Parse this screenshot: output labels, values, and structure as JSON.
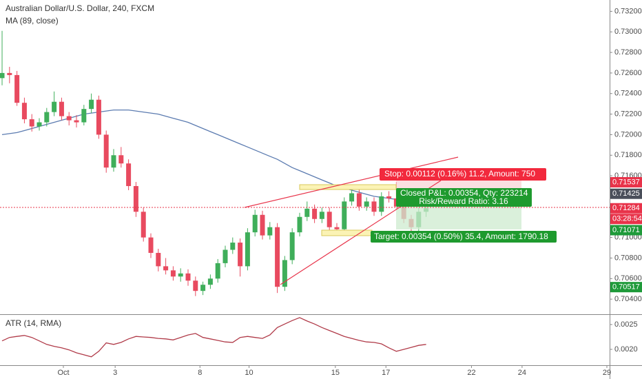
{
  "chart_data": [
    {
      "type": "candlestick",
      "title": "Australian Dollar/U.S. Dollar, 240, FXCM",
      "x": [
        0,
        1,
        2,
        3,
        4,
        5,
        6,
        7,
        8,
        9,
        10,
        11,
        12,
        13,
        14,
        15,
        16,
        17,
        18,
        19,
        20,
        21,
        22,
        23,
        24,
        25,
        26,
        27,
        28,
        29,
        30,
        31,
        32,
        33,
        34,
        35,
        36,
        37,
        38,
        39,
        40,
        41,
        42,
        43,
        44,
        45,
        46,
        47,
        48,
        49,
        50,
        51,
        52,
        53,
        54,
        55,
        56,
        57
      ],
      "ohlc": [
        [
          0.7255,
          0.7301,
          0.7248,
          0.726
        ],
        [
          0.726,
          0.7266,
          0.725,
          0.7258
        ],
        [
          0.7258,
          0.7262,
          0.7228,
          0.7231
        ],
        [
          0.7231,
          0.7236,
          0.7211,
          0.7215
        ],
        [
          0.7215,
          0.722,
          0.7203,
          0.7208
        ],
        [
          0.7208,
          0.7216,
          0.7204,
          0.7212
        ],
        [
          0.7212,
          0.7226,
          0.7208,
          0.7222
        ],
        [
          0.7222,
          0.7242,
          0.7218,
          0.7232
        ],
        [
          0.7232,
          0.7236,
          0.7214,
          0.7218
        ],
        [
          0.7218,
          0.7222,
          0.7209,
          0.7214
        ],
        [
          0.7214,
          0.7219,
          0.7207,
          0.7212
        ],
        [
          0.7212,
          0.7229,
          0.7209,
          0.7225
        ],
        [
          0.7225,
          0.724,
          0.7221,
          0.7234
        ],
        [
          0.7234,
          0.7238,
          0.7196,
          0.72
        ],
        [
          0.72,
          0.7204,
          0.7163,
          0.7168
        ],
        [
          0.7168,
          0.7186,
          0.7164,
          0.718
        ],
        [
          0.718,
          0.7188,
          0.7168,
          0.7172
        ],
        [
          0.7172,
          0.7176,
          0.7146,
          0.715
        ],
        [
          0.715,
          0.7154,
          0.712,
          0.7125
        ],
        [
          0.7125,
          0.7129,
          0.7096,
          0.71
        ],
        [
          0.71,
          0.7104,
          0.708,
          0.7085
        ],
        [
          0.7085,
          0.7089,
          0.7067,
          0.7072
        ],
        [
          0.7072,
          0.708,
          0.7064,
          0.7068
        ],
        [
          0.7068,
          0.7072,
          0.7058,
          0.7062
        ],
        [
          0.7062,
          0.707,
          0.7057,
          0.7065
        ],
        [
          0.7065,
          0.7069,
          0.7053,
          0.7058
        ],
        [
          0.7058,
          0.7062,
          0.7043,
          0.7048
        ],
        [
          0.7048,
          0.7057,
          0.7044,
          0.7054
        ],
        [
          0.7054,
          0.7064,
          0.705,
          0.706
        ],
        [
          0.706,
          0.7079,
          0.7056,
          0.7075
        ],
        [
          0.7075,
          0.7092,
          0.7071,
          0.7088
        ],
        [
          0.7088,
          0.71,
          0.7084,
          0.7095
        ],
        [
          0.7095,
          0.7099,
          0.7062,
          0.7072
        ],
        [
          0.7072,
          0.7109,
          0.7068,
          0.7105
        ],
        [
          0.7105,
          0.7127,
          0.7101,
          0.7122
        ],
        [
          0.7122,
          0.7126,
          0.7098,
          0.7102
        ],
        [
          0.7102,
          0.7115,
          0.7098,
          0.711
        ],
        [
          0.711,
          0.7114,
          0.7046,
          0.7052
        ],
        [
          0.7052,
          0.7082,
          0.7048,
          0.7078
        ],
        [
          0.7078,
          0.7109,
          0.7074,
          0.7105
        ],
        [
          0.7105,
          0.7124,
          0.7101,
          0.712
        ],
        [
          0.712,
          0.7135,
          0.7116,
          0.7128
        ],
        [
          0.7128,
          0.7132,
          0.7114,
          0.7118
        ],
        [
          0.7118,
          0.7129,
          0.7114,
          0.7125
        ],
        [
          0.7125,
          0.7129,
          0.7106,
          0.711
        ],
        [
          0.711,
          0.7114,
          0.7104,
          0.7108
        ],
        [
          0.7108,
          0.7139,
          0.7104,
          0.7135
        ],
        [
          0.7135,
          0.7148,
          0.7131,
          0.7143
        ],
        [
          0.7143,
          0.7147,
          0.7126,
          0.713
        ],
        [
          0.713,
          0.7139,
          0.7126,
          0.7135
        ],
        [
          0.7135,
          0.7139,
          0.7121,
          0.7125
        ],
        [
          0.7125,
          0.7144,
          0.7121,
          0.714
        ],
        [
          0.714,
          0.7145,
          0.7134,
          0.7138
        ],
        [
          0.7138,
          0.7154,
          0.7127,
          0.713
        ],
        [
          0.713,
          0.7134,
          0.7114,
          0.7118
        ],
        [
          0.7118,
          0.7122,
          0.7105,
          0.711
        ],
        [
          0.711,
          0.7129,
          0.7106,
          0.7125
        ],
        [
          0.7125,
          0.7131,
          0.712,
          0.71284
        ]
      ],
      "up_color": "#3fae5a",
      "down_color": "#e84a5f",
      "series": [
        {
          "name": "MA (89, close)",
          "color": "#5b7bb0",
          "values": [
            0.72,
            0.7201,
            0.7202,
            0.7204,
            0.7206,
            0.7208,
            0.721,
            0.7212,
            0.7214,
            0.7216,
            0.7218,
            0.722,
            0.7221,
            0.7222,
            0.7223,
            0.7224,
            0.7224,
            0.7224,
            0.7223,
            0.7222,
            0.7221,
            0.722,
            0.7218,
            0.7216,
            0.7214,
            0.7212,
            0.7209,
            0.7206,
            0.7203,
            0.72,
            0.7197,
            0.7194,
            0.7191,
            0.7188,
            0.7185,
            0.7182,
            0.7179,
            0.7176,
            0.7172,
            0.7168,
            0.7165,
            0.7162,
            0.7159,
            0.7156,
            0.7153,
            0.715,
            0.7148,
            0.7146,
            0.7144,
            0.7142,
            0.714,
            0.7139,
            0.7138,
            0.7137,
            0.7136,
            0.7135,
            0.7134,
            0.7133
          ]
        }
      ],
      "xlim": [
        -0.28,
        81.67
      ],
      "xticks": [
        {
          "value": 8.24,
          "label": "Oct"
        },
        {
          "value": 15.2,
          "label": "3"
        },
        {
          "value": 26.6,
          "label": "8"
        },
        {
          "value": 33.2,
          "label": "10"
        },
        {
          "value": 44.8,
          "label": "15"
        },
        {
          "value": 51.6,
          "label": "17"
        },
        {
          "value": 63.1,
          "label": "22"
        },
        {
          "value": 69.9,
          "label": "24"
        },
        {
          "value": 81.3,
          "label": "29"
        }
      ],
      "ylim": [
        0.7026,
        0.7331
      ],
      "yticks": [
        {
          "value": 0.732,
          "label": "0.73200"
        },
        {
          "value": 0.73,
          "label": "0.73000"
        },
        {
          "value": 0.728,
          "label": "0.72800"
        },
        {
          "value": 0.726,
          "label": "0.72600"
        },
        {
          "value": 0.724,
          "label": "0.72400"
        },
        {
          "value": 0.722,
          "label": "0.72200"
        },
        {
          "value": 0.72,
          "label": "0.72000"
        },
        {
          "value": 0.718,
          "label": "0.71800"
        },
        {
          "value": 0.716,
          "label": "0.71600"
        },
        {
          "value": 0.71,
          "label": "0.71000"
        },
        {
          "value": 0.708,
          "label": "0.70800"
        },
        {
          "value": 0.706,
          "label": "0.70600"
        },
        {
          "value": 0.704,
          "label": "0.70400"
        }
      ],
      "price_badges": [
        {
          "value": 0.71537,
          "label": "0.71537",
          "color": "#e8334a"
        },
        {
          "value": 0.71425,
          "label": "0.71425",
          "color": "#4a4f5a"
        },
        {
          "value": 0.71284,
          "label": "0.71284",
          "color": "#e8334a"
        },
        {
          "value": 0.71071,
          "label": "0.71071",
          "color": "#1f9a3a"
        },
        {
          "value": 0.70517,
          "label": "0.70517",
          "color": "#1f9a3a"
        }
      ],
      "countdown": "03:28:54",
      "annotations": [
        "Stop: 0.00112 (0.16%) 11.2, Amount: 750",
        "Closed P&L: 0.00354, Qty: 223214",
        "Risk/Reward Ratio: 3.16",
        "Target: 0.00354 (0.50%) 35.4, Amount: 1790.18"
      ]
    },
    {
      "type": "line",
      "series": [
        {
          "name": "ATR (14, RMA)",
          "color": "#b03a48",
          "values": [
            0.00217,
            0.00224,
            0.00226,
            0.00228,
            0.00224,
            0.00217,
            0.0021,
            0.00206,
            0.00203,
            0.00199,
            0.00193,
            0.00189,
            0.00185,
            0.00196,
            0.00213,
            0.0021,
            0.00214,
            0.00221,
            0.00226,
            0.00225,
            0.00224,
            0.00222,
            0.00221,
            0.00219,
            0.00224,
            0.00229,
            0.00232,
            0.00224,
            0.00221,
            0.00218,
            0.00215,
            0.00214,
            0.00224,
            0.00226,
            0.00224,
            0.00222,
            0.00229,
            0.00244,
            0.00251,
            0.00258,
            0.00264,
            0.00257,
            0.00251,
            0.00244,
            0.00238,
            0.00232,
            0.00226,
            0.00222,
            0.00218,
            0.00215,
            0.00214,
            0.00211,
            0.00203,
            0.00196,
            0.002,
            0.00204,
            0.00208,
            0.0021
          ]
        }
      ],
      "ylim": [
        0.00168,
        0.00268
      ],
      "yticks": [
        0.0025,
        {
          "value": 0.002,
          "label": "0.0020"
        }
      ]
    }
  ]
}
